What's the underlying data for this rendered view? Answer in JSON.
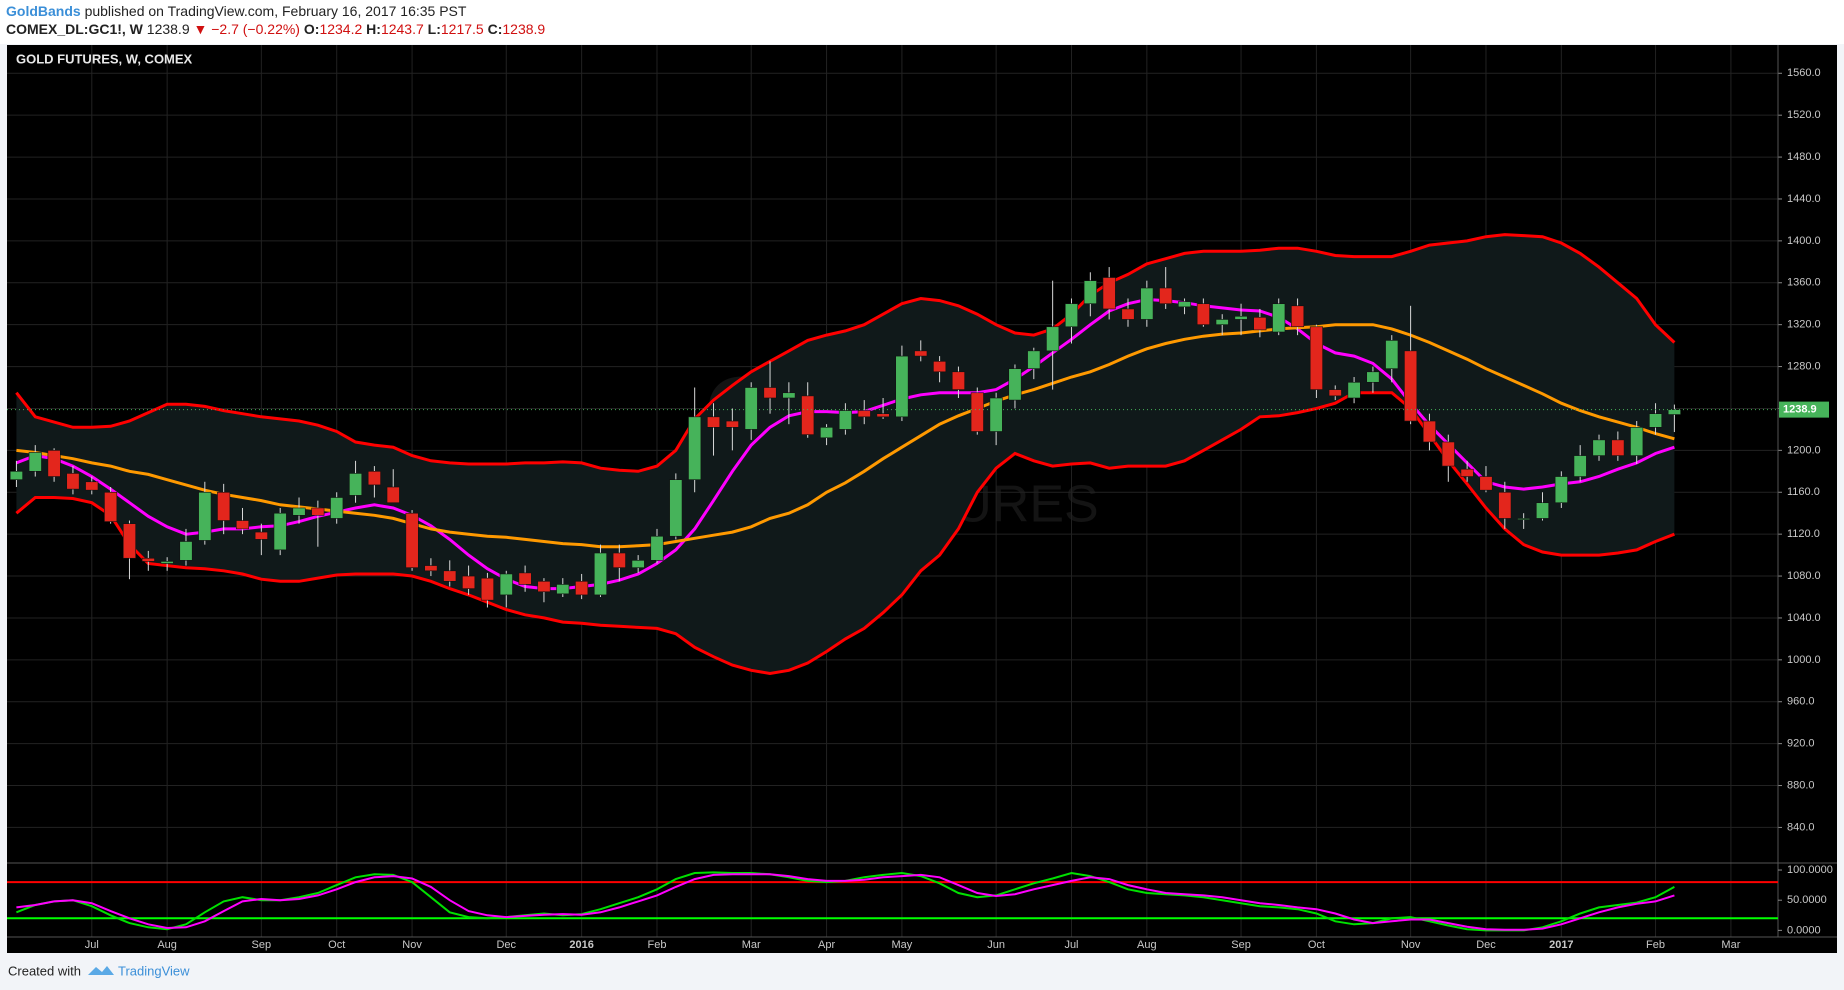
{
  "header": {
    "author": "GoldBands",
    "published": "published on TradingView.com, February 16, 2017 16:35 PST",
    "symbol": "COMEX_DL:GC1!, W",
    "change": "▼ −2.7 (−0.22%)",
    "o": "O:",
    "h": "H:",
    "l": "L:",
    "c": "C:"
  },
  "footer": {
    "created": "Created with",
    "brand": "TradingView"
  },
  "chart_data": [
    {
      "type": "candlestick",
      "title": "GOLD FUTURES, W, COMEX",
      "watermark": [
        "GC1!, W",
        "GOLD FUTURES"
      ],
      "categories": [
        null,
        null,
        null,
        null,
        "Jul",
        null,
        null,
        null,
        "Aug",
        null,
        null,
        null,
        null,
        "Sep",
        null,
        null,
        null,
        "Oct",
        null,
        null,
        null,
        "Nov",
        null,
        null,
        null,
        null,
        "Dec",
        null,
        null,
        null,
        "2016",
        null,
        null,
        null,
        "Feb",
        null,
        null,
        null,
        null,
        "Mar",
        null,
        null,
        null,
        "Apr",
        null,
        null,
        null,
        "May",
        null,
        null,
        null,
        null,
        "Jun",
        null,
        null,
        null,
        "Jul",
        null,
        null,
        null,
        "Aug",
        null,
        null,
        null,
        null,
        "Sep",
        null,
        null,
        null,
        "Oct",
        null,
        null,
        null,
        null,
        "Nov",
        null,
        null,
        null,
        "Dec",
        null,
        null,
        null,
        "2017",
        null,
        null,
        null,
        null,
        "Feb",
        null,
        null,
        null,
        "Mar",
        null,
        null
      ],
      "open": [
        1172,
        1180,
        1200,
        1178,
        1170,
        1160,
        1130,
        1097,
        1092,
        1095,
        1114,
        1160,
        1133,
        1122,
        1105,
        1138,
        1145,
        1135,
        1157,
        1180,
        1165,
        1140,
        1090,
        1085,
        1080,
        1078,
        1062,
        1083,
        1075,
        1063,
        1075,
        1062,
        1102,
        1088,
        1095,
        1118,
        1172,
        1232,
        1228,
        1220,
        1260,
        1250,
        1252,
        1212,
        1220,
        1238,
        1235,
        1232,
        1295,
        1285,
        1275,
        1255,
        1218,
        1248,
        1278,
        1295,
        1318,
        1340,
        1365,
        1335,
        1325,
        1355,
        1337,
        1340,
        1320,
        1325,
        1327,
        1313,
        1338,
        1318,
        1258,
        1250,
        1265,
        1278,
        1295,
        1228,
        1208,
        1182,
        1175,
        1160,
        1134,
        1135,
        1150,
        1175,
        1195,
        1210,
        1195,
        1222,
        1234.2,
        null,
        null,
        null,
        null,
        null
      ],
      "high": [
        1190,
        1205,
        1202,
        1185,
        1175,
        1165,
        1133,
        1104,
        1098,
        1125,
        1170,
        1168,
        1145,
        1130,
        1145,
        1155,
        1152,
        1160,
        1190,
        1185,
        1182,
        1143,
        1097,
        1095,
        1090,
        1083,
        1085,
        1090,
        1078,
        1078,
        1082,
        1110,
        1110,
        1100,
        1125,
        1178,
        1260,
        1245,
        1240,
        1265,
        1285,
        1265,
        1265,
        1225,
        1245,
        1248,
        1250,
        1300,
        1305,
        1290,
        1280,
        1260,
        1255,
        1282,
        1298,
        1362,
        1345,
        1370,
        1375,
        1345,
        1362,
        1375,
        1345,
        1345,
        1330,
        1340,
        1335,
        1345,
        1345,
        1320,
        1262,
        1270,
        1280,
        1310,
        1338,
        1235,
        1215,
        1190,
        1185,
        1170,
        1140,
        1160,
        1180,
        1205,
        1215,
        1218,
        1228,
        1245,
        1243.7,
        null,
        null,
        null,
        null,
        null
      ],
      "low": [
        1165,
        1175,
        1170,
        1158,
        1158,
        1130,
        1077,
        1085,
        1085,
        1090,
        1110,
        1120,
        1120,
        1100,
        1100,
        1130,
        1108,
        1130,
        1150,
        1155,
        1150,
        1085,
        1080,
        1070,
        1062,
        1050,
        1050,
        1065,
        1055,
        1060,
        1058,
        1060,
        1075,
        1083,
        1092,
        1115,
        1160,
        1195,
        1200,
        1210,
        1235,
        1225,
        1212,
        1205,
        1215,
        1225,
        1230,
        1228,
        1285,
        1265,
        1250,
        1215,
        1205,
        1240,
        1268,
        1258,
        1302,
        1328,
        1325,
        1318,
        1318,
        1335,
        1330,
        1318,
        1310,
        1310,
        1308,
        1310,
        1310,
        1250,
        1248,
        1245,
        1255,
        1265,
        1225,
        1200,
        1170,
        1170,
        1160,
        1125,
        1125,
        1133,
        1145,
        1170,
        1190,
        1190,
        1187,
        1215,
        1217.5,
        null,
        null,
        null,
        null,
        null
      ],
      "close": [
        1180,
        1198,
        1175,
        1163,
        1162,
        1132,
        1097,
        1094,
        1094,
        1113,
        1160,
        1133,
        1125,
        1115,
        1140,
        1145,
        1138,
        1155,
        1178,
        1167,
        1150,
        1088,
        1085,
        1075,
        1068,
        1057,
        1082,
        1072,
        1065,
        1072,
        1062,
        1102,
        1088,
        1095,
        1118,
        1172,
        1232,
        1222,
        1222,
        1260,
        1250,
        1255,
        1215,
        1222,
        1238,
        1232,
        1232,
        1290,
        1290,
        1275,
        1258,
        1218,
        1250,
        1278,
        1295,
        1318,
        1340,
        1362,
        1335,
        1325,
        1355,
        1340,
        1342,
        1320,
        1325,
        1328,
        1315,
        1340,
        1318,
        1258,
        1252,
        1265,
        1275,
        1305,
        1228,
        1208,
        1185,
        1175,
        1162,
        1135,
        1135,
        1150,
        1175,
        1195,
        1210,
        1195,
        1222,
        1235,
        1238.9,
        null,
        null,
        null,
        null,
        null
      ],
      "up_color": "#46b35a",
      "down_color": "#e3261c",
      "series": [
        {
          "color": "#ff0000",
          "values": [
            1255,
            1232,
            1227,
            1222,
            1222,
            1223,
            1228,
            1236,
            1244,
            1244,
            1242,
            1238,
            1235,
            1232,
            1230,
            1228,
            1224,
            1218,
            1208,
            1205,
            1203,
            1195,
            1190,
            1188,
            1187,
            1187,
            1187,
            1188,
            1188,
            1189,
            1188,
            1183,
            1181,
            1180,
            1185,
            1200,
            1230,
            1248,
            1262,
            1275,
            1285,
            1295,
            1305,
            1310,
            1314,
            1320,
            1330,
            1340,
            1345,
            1343,
            1338,
            1330,
            1320,
            1312,
            1310,
            1316,
            1330,
            1348,
            1360,
            1368,
            1378,
            1383,
            1388,
            1390,
            1390,
            1390,
            1391,
            1393,
            1393,
            1390,
            1386,
            1385,
            1385,
            1385,
            1390,
            1396,
            1398,
            1400,
            1404,
            1406,
            1405,
            1404,
            1398,
            1388,
            1375,
            1360,
            1345,
            1320,
            1303,
            null,
            null,
            null,
            null,
            null
          ]
        },
        {
          "color": "#ff0000",
          "values": [
            1140,
            1155,
            1155,
            1154,
            1150,
            1138,
            1110,
            1092,
            1090,
            1088,
            1087,
            1085,
            1082,
            1077,
            1075,
            1075,
            1078,
            1081,
            1082,
            1082,
            1082,
            1080,
            1075,
            1068,
            1062,
            1055,
            1048,
            1043,
            1040,
            1036,
            1035,
            1033,
            1032,
            1031,
            1030,
            1025,
            1012,
            1003,
            995,
            990,
            987,
            990,
            997,
            1008,
            1020,
            1030,
            1045,
            1062,
            1085,
            1100,
            1125,
            1160,
            1183,
            1197,
            1190,
            1185,
            1187,
            1188,
            1183,
            1185,
            1185,
            1185,
            1190,
            1200,
            1210,
            1220,
            1232,
            1233,
            1236,
            1240,
            1245,
            1255,
            1255,
            1255,
            1240,
            1215,
            1190,
            1168,
            1145,
            1125,
            1110,
            1103,
            1100,
            1100,
            1100,
            1102,
            1105,
            1113,
            1120,
            null,
            null,
            null,
            null,
            null
          ]
        },
        {
          "color": "#ff00ff",
          "values": [
            1188,
            1195,
            1192,
            1185,
            1175,
            1163,
            1150,
            1137,
            1127,
            1120,
            1122,
            1125,
            1125,
            1127,
            1128,
            1132,
            1137,
            1141,
            1145,
            1148,
            1145,
            1138,
            1128,
            1115,
            1100,
            1087,
            1077,
            1070,
            1068,
            1068,
            1070,
            1072,
            1076,
            1082,
            1092,
            1105,
            1125,
            1152,
            1180,
            1205,
            1222,
            1233,
            1237,
            1237,
            1236,
            1237,
            1243,
            1249,
            1253,
            1255,
            1255,
            1255,
            1258,
            1268,
            1280,
            1293,
            1306,
            1320,
            1333,
            1340,
            1344,
            1343,
            1341,
            1338,
            1336,
            1334,
            1333,
            1327,
            1316,
            1302,
            1293,
            1290,
            1283,
            1268,
            1245,
            1224,
            1206,
            1188,
            1170,
            1165,
            1163,
            1165,
            1168,
            1170,
            1175,
            1182,
            1188,
            1197,
            1203,
            null,
            null,
            null,
            null,
            null
          ]
        },
        {
          "color": "#ff9900",
          "values": [
            1200,
            1198,
            1195,
            1192,
            1188,
            1185,
            1180,
            1177,
            1172,
            1167,
            1162,
            1158,
            1155,
            1152,
            1148,
            1146,
            1144,
            1142,
            1140,
            1138,
            1135,
            1130,
            1125,
            1122,
            1120,
            1118,
            1117,
            1115,
            1113,
            1111,
            1110,
            1108,
            1108,
            1109,
            1110,
            1113,
            1116,
            1119,
            1122,
            1127,
            1135,
            1140,
            1148,
            1160,
            1169,
            1180,
            1192,
            1203,
            1214,
            1225,
            1233,
            1240,
            1247,
            1253,
            1258,
            1264,
            1270,
            1275,
            1282,
            1290,
            1297,
            1302,
            1306,
            1309,
            1311,
            1312,
            1314,
            1316,
            1317,
            1318,
            1320,
            1320,
            1320,
            1316,
            1310,
            1303,
            1295,
            1287,
            1278,
            1270,
            1262,
            1254,
            1245,
            1238,
            1232,
            1227,
            1222,
            1216,
            1211,
            null,
            null,
            null,
            null,
            null
          ]
        }
      ],
      "ylim": [
        807,
        1587
      ],
      "yticks": [
        {
          "value": 840,
          "label": "840.0"
        },
        {
          "value": 880,
          "label": "880.0"
        },
        {
          "value": 920,
          "label": "920.0"
        },
        {
          "value": 960,
          "label": "960.0"
        },
        {
          "value": 1000,
          "label": "1000.0"
        },
        {
          "value": 1040,
          "label": "1040.0"
        },
        {
          "value": 1080,
          "label": "1080.0"
        },
        {
          "value": 1120,
          "label": "1120.0"
        },
        {
          "value": 1160,
          "label": "1160.0"
        },
        {
          "value": 1200,
          "label": "1200.0"
        },
        {
          "value": 1240,
          "label": "1240.0"
        },
        {
          "value": 1280,
          "label": "1280.0"
        },
        {
          "value": 1320,
          "label": "1320.0"
        },
        {
          "value": 1360,
          "label": "1360.0"
        },
        {
          "value": 1400,
          "label": "1400.0"
        },
        {
          "value": 1440,
          "label": "1440.0"
        },
        {
          "value": 1480,
          "label": "1480.0"
        },
        {
          "value": 1520,
          "label": "1520.0"
        },
        {
          "value": 1560,
          "label": "1560.0"
        }
      ],
      "grid": true
    },
    {
      "type": "line",
      "series": [
        {
          "color": "#00e000",
          "values": [
            30,
            42,
            48,
            50,
            40,
            25,
            12,
            5,
            2,
            10,
            30,
            48,
            55,
            50,
            50,
            55,
            62,
            75,
            88,
            93,
            92,
            80,
            55,
            30,
            22,
            20,
            22,
            25,
            28,
            25,
            27,
            35,
            45,
            55,
            68,
            85,
            95,
            96,
            95,
            95,
            93,
            88,
            82,
            80,
            82,
            88,
            92,
            95,
            90,
            78,
            62,
            55,
            58,
            68,
            78,
            86,
            95,
            90,
            80,
            68,
            62,
            60,
            58,
            55,
            50,
            45,
            40,
            38,
            35,
            28,
            15,
            10,
            12,
            20,
            22,
            15,
            8,
            2,
            0,
            0,
            0,
            5,
            15,
            28,
            38,
            42,
            46,
            55,
            72,
            null,
            null,
            null,
            null,
            null
          ]
        },
        {
          "color": "#ff00ff",
          "values": [
            38,
            42,
            48,
            50,
            45,
            32,
            20,
            10,
            4,
            5,
            15,
            32,
            48,
            52,
            50,
            52,
            58,
            68,
            80,
            88,
            90,
            86,
            72,
            50,
            32,
            25,
            22,
            24,
            26,
            27,
            26,
            30,
            38,
            48,
            58,
            72,
            85,
            92,
            93,
            93,
            93,
            90,
            85,
            82,
            82,
            84,
            88,
            90,
            92,
            88,
            75,
            62,
            57,
            60,
            68,
            75,
            82,
            88,
            85,
            75,
            68,
            62,
            60,
            58,
            55,
            50,
            45,
            42,
            38,
            35,
            28,
            18,
            12,
            15,
            18,
            18,
            12,
            6,
            2,
            1,
            1,
            3,
            10,
            20,
            30,
            38,
            44,
            48,
            58,
            null,
            null,
            null,
            null,
            null
          ]
        }
      ],
      "hlines": [
        {
          "value": 80,
          "color": "#ff0000"
        },
        {
          "value": 20,
          "color": "#00ff00"
        }
      ],
      "ylim": [
        -11,
        110
      ],
      "yticks": [
        {
          "value": 0,
          "label": "0.0000"
        },
        {
          "value": 50,
          "label": "50.0000"
        },
        {
          "value": 100,
          "label": "100.0000"
        }
      ]
    }
  ]
}
